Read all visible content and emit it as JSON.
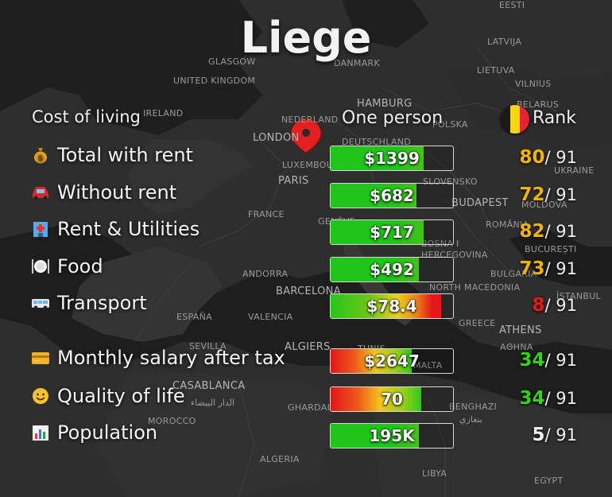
{
  "city": "Liege",
  "header": {
    "cost_of_living": "Cost of living",
    "one_person": "One person",
    "rank": "Rank"
  },
  "rows": [
    {
      "icon": "money-bag-icon",
      "label": "Total with rent",
      "value": "$1399",
      "fill_fraction": 0.76,
      "fill_type": "green",
      "rank": "80",
      "total": "/ 91",
      "rank_color": "#f0b400"
    },
    {
      "icon": "car-icon",
      "label": "Without rent",
      "value": "$682",
      "fill_fraction": 0.7,
      "fill_type": "green",
      "rank": "72",
      "total": "/ 91",
      "rank_color": "#f0b400"
    },
    {
      "icon": "hotel-icon",
      "label": "Rent & Utilities",
      "value": "$717",
      "fill_fraction": 0.76,
      "fill_type": "green",
      "rank": "82",
      "total": "/ 91",
      "rank_color": "#f0b400"
    },
    {
      "icon": "fork-plate-icon",
      "label": "Food",
      "value": "$492",
      "fill_fraction": 0.72,
      "fill_type": "green",
      "rank": "73",
      "total": "/ 91",
      "rank_color": "#f0b400"
    },
    {
      "icon": "minibus-icon",
      "label": "Transport",
      "value": "$78.4",
      "fill_fraction": 0.9,
      "fill_type": "green-red",
      "rank": "8",
      "total": "/ 91",
      "rank_color": "#e81b1b"
    },
    {
      "icon": "credit-card-icon",
      "label": "Monthly salary after tax",
      "value": "$2647",
      "fill_fraction": 0.66,
      "fill_type": "red-green",
      "rank": "34",
      "total": "/ 91",
      "rank_color": "#35d21a"
    },
    {
      "icon": "smiley-icon",
      "label": "Quality of life",
      "value": "70",
      "fill_fraction": 0.74,
      "fill_type": "red-green",
      "rank": "34",
      "total": "/ 91",
      "rank_color": "#35d21a"
    },
    {
      "icon": "bar-chart-icon",
      "label": "Population",
      "value": "195K",
      "fill_fraction": 0.72,
      "fill_type": "green",
      "rank": "5",
      "total": "/ 91",
      "rank_color": "#f0f0f0"
    }
  ],
  "map_labels": [
    "EESTI",
    "LATVIJA",
    "GLASGOW",
    "DANMARK",
    "LIETUVA",
    "UNITED KINGDOM",
    "VILNIUS",
    "HAMBURG",
    "BELARUS",
    "IRELAND",
    "NEDERLAND",
    "DEUTSCHLAND",
    "POLSKA",
    "LONDON",
    "UKRAINE",
    "LUXEMBOURG",
    "PARIS",
    "SLOVENSKO",
    "BUDAPEST",
    "MOLDOVA",
    "FRANCE",
    "GENÈVE",
    "ROMÂNIA",
    "BOSNA I HERCEGOVINA",
    "BUCUREȘTI",
    "ANDORRA",
    "BULGARIA",
    "BARCELONA",
    "NORTH MACEDONIA",
    "İSTANBUL",
    "ESPAÑA",
    "VALENCIA",
    "GREECE",
    "ATHENS",
    "ΑΘΗΝΑ",
    "SEVILLA",
    "ALGIERS",
    "TUNIS",
    "MALTA",
    "CASABLANCA",
    "الدار البيضاء",
    "GHARDAIA",
    "BENGHAZI",
    "بنغازي",
    "MOROCCO",
    "ALGERIA",
    "LIBYA",
    "EGYPT"
  ]
}
